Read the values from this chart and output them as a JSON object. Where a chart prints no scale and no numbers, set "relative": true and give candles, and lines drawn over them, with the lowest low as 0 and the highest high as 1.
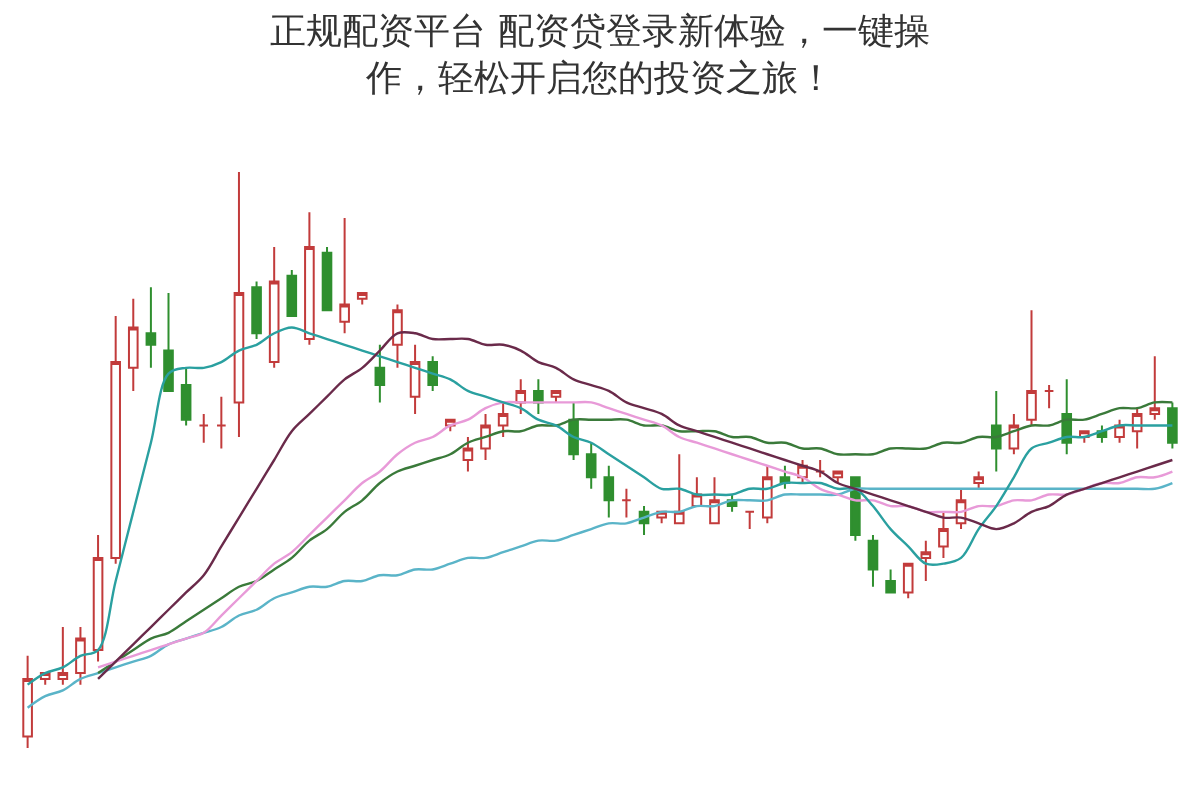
{
  "chart_data": {
    "type": "candlestick",
    "title": "正规配资平台 配资贷登录新体验，一键操作，轻松开启您的投资之旅！",
    "relative": true,
    "categories": [
      null,
      null,
      null,
      null,
      null,
      null,
      null,
      null,
      null,
      null,
      null,
      null,
      null,
      null,
      null,
      null,
      null,
      null,
      null,
      null,
      null,
      null,
      null,
      null,
      null,
      null,
      null,
      null,
      null,
      null,
      null,
      null,
      null,
      null,
      null,
      null,
      null,
      null,
      null,
      null,
      null,
      null,
      null,
      null,
      null,
      null,
      null,
      null,
      null,
      null,
      null,
      null,
      null,
      null,
      null,
      null,
      null,
      null,
      null,
      null,
      null,
      null,
      null,
      null,
      null,
      null
    ],
    "ohlc": [
      [
        0.02,
        0.16,
        0,
        0.12
      ],
      [
        0.12,
        0.13,
        0.11,
        0.13
      ],
      [
        0.12,
        0.21,
        0.11,
        0.13
      ],
      [
        0.13,
        0.21,
        0.11,
        0.19
      ],
      [
        0.17,
        0.37,
        0.15,
        0.33
      ],
      [
        0.33,
        0.75,
        0.32,
        0.67
      ],
      [
        0.66,
        0.78,
        0.62,
        0.73
      ],
      [
        0.72,
        0.8,
        0.66,
        0.7
      ],
      [
        0.69,
        0.79,
        0.62,
        0.62
      ],
      [
        0.63,
        0.66,
        0.56,
        0.57
      ],
      [
        0.56,
        0.58,
        0.53,
        0.56
      ],
      [
        0.56,
        0.61,
        0.52,
        0.56
      ],
      [
        0.6,
        1,
        0.54,
        0.79
      ],
      [
        0.8,
        0.81,
        0.71,
        0.72
      ],
      [
        0.67,
        0.87,
        0.66,
        0.81
      ],
      [
        0.82,
        0.83,
        0.75,
        0.75
      ],
      [
        0.71,
        0.93,
        0.7,
        0.87
      ],
      [
        0.86,
        0.87,
        0.76,
        0.76
      ],
      [
        0.74,
        0.92,
        0.72,
        0.77
      ],
      [
        0.78,
        0.79,
        0.77,
        0.79
      ],
      [
        0.66,
        0.7,
        0.6,
        0.63
      ],
      [
        0.7,
        0.77,
        0.66,
        0.76
      ],
      [
        0.61,
        0.7,
        0.58,
        0.67
      ],
      [
        0.67,
        0.68,
        0.62,
        0.63
      ],
      [
        0.56,
        0.57,
        0.55,
        0.57
      ],
      [
        0.5,
        0.54,
        0.48,
        0.52
      ],
      [
        0.52,
        0.58,
        0.5,
        0.56
      ],
      [
        0.56,
        0.6,
        0.54,
        0.58
      ],
      [
        0.6,
        0.64,
        0.58,
        0.62
      ],
      [
        0.62,
        0.64,
        0.58,
        0.6
      ],
      [
        0.61,
        0.62,
        0.6,
        0.62
      ],
      [
        0.57,
        0.6,
        0.5,
        0.51
      ],
      [
        0.51,
        0.53,
        0.45,
        0.47
      ],
      [
        0.47,
        0.49,
        0.4,
        0.43
      ],
      [
        0.43,
        0.45,
        0.4,
        0.43
      ],
      [
        0.41,
        0.42,
        0.37,
        0.39
      ],
      [
        0.4,
        0.41,
        0.39,
        0.41
      ],
      [
        0.39,
        0.51,
        0.39,
        0.41
      ],
      [
        0.42,
        0.47,
        0.42,
        0.44
      ],
      [
        0.39,
        0.47,
        0.39,
        0.43
      ],
      [
        0.43,
        0.44,
        0.41,
        0.42
      ],
      [
        0.41,
        0.41,
        0.38,
        0.41
      ],
      [
        0.4,
        0.49,
        0.39,
        0.47
      ],
      [
        0.47,
        0.49,
        0.45,
        0.46
      ],
      [
        0.47,
        0.5,
        0.46,
        0.49
      ],
      [
        0.48,
        0.5,
        0.47,
        0.48
      ],
      [
        0.47,
        0.48,
        0.46,
        0.48
      ],
      [
        0.47,
        0.47,
        0.36,
        0.37
      ],
      [
        0.36,
        0.37,
        0.28,
        0.31
      ],
      [
        0.29,
        0.31,
        0.27,
        0.27
      ],
      [
        0.27,
        0.32,
        0.26,
        0.32
      ],
      [
        0.33,
        0.36,
        0.29,
        0.34
      ],
      [
        0.35,
        0.41,
        0.33,
        0.38
      ],
      [
        0.39,
        0.45,
        0.38,
        0.43
      ],
      [
        0.46,
        0.48,
        0.45,
        0.47
      ],
      [
        0.56,
        0.62,
        0.48,
        0.52
      ],
      [
        0.52,
        0.58,
        0.51,
        0.56
      ],
      [
        0.57,
        0.76,
        0.56,
        0.62
      ],
      [
        0.62,
        0.63,
        0.59,
        0.62
      ],
      [
        0.58,
        0.64,
        0.51,
        0.53
      ],
      [
        0.54,
        0.55,
        0.53,
        0.55
      ],
      [
        0.55,
        0.56,
        0.53,
        0.54
      ],
      [
        0.54,
        0.57,
        0.53,
        0.56
      ],
      [
        0.55,
        0.59,
        0.52,
        0.58
      ],
      [
        0.58,
        0.68,
        0.57,
        0.59
      ],
      [
        0.59,
        0.6,
        0.52,
        0.53
      ]
    ],
    "colors": [
      "#c23b3b",
      "#c23b3b",
      "#c23b3b",
      "#c23b3b",
      "#c23b3b",
      "#c23b3b",
      "#c23b3b",
      "#2f8f2f",
      "#2f8f2f",
      "#2f8f2f",
      "#c23b3b",
      "#c23b3b",
      "#c23b3b",
      "#2f8f2f",
      "#c23b3b",
      "#2f8f2f",
      "#c23b3b",
      "#2f8f2f",
      "#c23b3b",
      "#c23b3b",
      "#2f8f2f",
      "#c23b3b",
      "#c23b3b",
      "#2f8f2f",
      "#c23b3b",
      "#c23b3b",
      "#c23b3b",
      "#c23b3b",
      "#c23b3b",
      "#2f8f2f",
      "#c23b3b",
      "#2f8f2f",
      "#2f8f2f",
      "#2f8f2f",
      "#c23b3b",
      "#2f8f2f",
      "#c23b3b",
      "#c23b3b",
      "#c23b3b",
      "#c23b3b",
      "#2f8f2f",
      "#c23b3b",
      "#c23b3b",
      "#2f8f2f",
      "#c23b3b",
      "#c23b3b",
      "#c23b3b",
      "#2f8f2f",
      "#2f8f2f",
      "#2f8f2f",
      "#c23b3b",
      "#c23b3b",
      "#c23b3b",
      "#c23b3b",
      "#c23b3b",
      "#2f8f2f",
      "#c23b3b",
      "#c23b3b",
      "#c23b3b",
      "#2f8f2f",
      "#c23b3b",
      "#2f8f2f",
      "#c23b3b",
      "#c23b3b",
      "#c23b3b",
      "#2f8f2f"
    ],
    "series": [
      {
        "type": "line",
        "color": "#5ab4c8",
        "values": [
          0.07,
          0.09,
          0.1,
          0.12,
          0.13,
          0.14,
          0.15,
          0.16,
          0.18,
          0.19,
          0.2,
          0.21,
          0.23,
          0.24,
          0.26,
          0.27,
          0.28,
          0.28,
          0.29,
          0.29,
          0.3,
          0.3,
          0.31,
          0.31,
          0.32,
          0.33,
          0.33,
          0.34,
          0.35,
          0.36,
          0.36,
          0.37,
          0.38,
          0.39,
          0.39,
          0.4,
          0.41,
          0.41,
          0.42,
          0.42,
          0.43,
          0.43,
          0.43,
          0.44,
          0.44,
          0.44,
          0.44,
          0.45,
          0.45,
          0.45,
          0.45,
          0.45,
          0.45,
          0.45,
          0.45,
          0.45,
          0.45,
          0.45,
          0.45,
          0.45,
          0.45,
          0.45,
          0.45,
          0.45,
          0.45,
          0.46
        ]
      },
      {
        "type": "line",
        "color": "#3a7a3a",
        "values": [
          null,
          null,
          null,
          null,
          0.13,
          0.15,
          0.17,
          0.19,
          0.2,
          0.22,
          0.24,
          0.26,
          0.28,
          0.29,
          0.31,
          0.33,
          0.36,
          0.38,
          0.41,
          0.43,
          0.46,
          0.48,
          0.49,
          0.5,
          0.51,
          0.53,
          0.54,
          0.55,
          0.55,
          0.56,
          0.56,
          0.57,
          0.57,
          0.57,
          0.57,
          0.56,
          0.56,
          0.55,
          0.55,
          0.55,
          0.54,
          0.54,
          0.53,
          0.53,
          0.52,
          0.52,
          0.51,
          0.51,
          0.51,
          0.52,
          0.52,
          0.52,
          0.53,
          0.53,
          0.54,
          0.54,
          0.55,
          0.56,
          0.56,
          0.57,
          0.57,
          0.58,
          0.59,
          0.59,
          0.6,
          0.6
        ]
      },
      {
        "type": "line",
        "color": "#e89ad8",
        "values": [
          null,
          null,
          null,
          null,
          0.14,
          0.15,
          0.16,
          0.17,
          0.18,
          0.19,
          0.2,
          0.23,
          0.26,
          0.29,
          0.32,
          0.34,
          0.37,
          0.4,
          0.43,
          0.46,
          0.48,
          0.51,
          0.53,
          0.54,
          0.56,
          0.57,
          0.59,
          0.6,
          0.6,
          0.6,
          0.6,
          0.6,
          0.6,
          0.59,
          0.58,
          0.57,
          0.56,
          0.54,
          0.53,
          0.52,
          0.51,
          0.5,
          0.49,
          0.48,
          0.47,
          0.45,
          0.44,
          0.43,
          0.43,
          0.42,
          0.42,
          0.41,
          0.41,
          0.41,
          0.42,
          0.42,
          0.43,
          0.43,
          0.44,
          0.44,
          0.45,
          0.46,
          0.46,
          0.47,
          0.47,
          0.48
        ]
      },
      {
        "type": "line",
        "color": "#2aa0a0",
        "values": [
          0.11,
          0.13,
          0.14,
          0.16,
          0.17,
          0.29,
          0.41,
          0.53,
          0.65,
          0.66,
          0.66,
          0.67,
          0.69,
          0.7,
          0.72,
          0.73,
          0.72,
          0.71,
          0.7,
          0.69,
          0.68,
          0.67,
          0.66,
          0.65,
          0.64,
          0.62,
          0.61,
          0.6,
          0.59,
          0.57,
          0.56,
          0.54,
          0.53,
          0.51,
          0.49,
          0.47,
          0.45,
          0.45,
          0.44,
          0.44,
          0.44,
          0.45,
          0.45,
          0.46,
          0.46,
          0.46,
          0.45,
          0.45,
          0.42,
          0.38,
          0.35,
          0.32,
          0.32,
          0.33,
          0.38,
          0.42,
          0.47,
          0.52,
          0.53,
          0.54,
          0.54,
          0.55,
          0.56,
          0.56,
          0.56,
          0.56
        ]
      },
      {
        "type": "line",
        "color": "#6a2a4a",
        "values": [
          null,
          null,
          null,
          null,
          0.12,
          0.15,
          0.18,
          0.21,
          0.24,
          0.27,
          0.3,
          0.35,
          0.4,
          0.45,
          0.5,
          0.55,
          0.58,
          0.61,
          0.64,
          0.66,
          0.69,
          0.72,
          0.72,
          0.71,
          0.71,
          0.71,
          0.7,
          0.7,
          0.69,
          0.67,
          0.66,
          0.64,
          0.63,
          0.62,
          0.6,
          0.59,
          0.58,
          0.56,
          0.55,
          0.54,
          0.53,
          0.52,
          0.51,
          0.5,
          0.49,
          0.48,
          0.46,
          0.45,
          0.44,
          0.43,
          0.42,
          0.41,
          0.4,
          0.4,
          0.39,
          0.38,
          0.39,
          0.41,
          0.42,
          0.44,
          0.45,
          0.46,
          0.47,
          0.48,
          0.49,
          0.5
        ]
      }
    ]
  }
}
